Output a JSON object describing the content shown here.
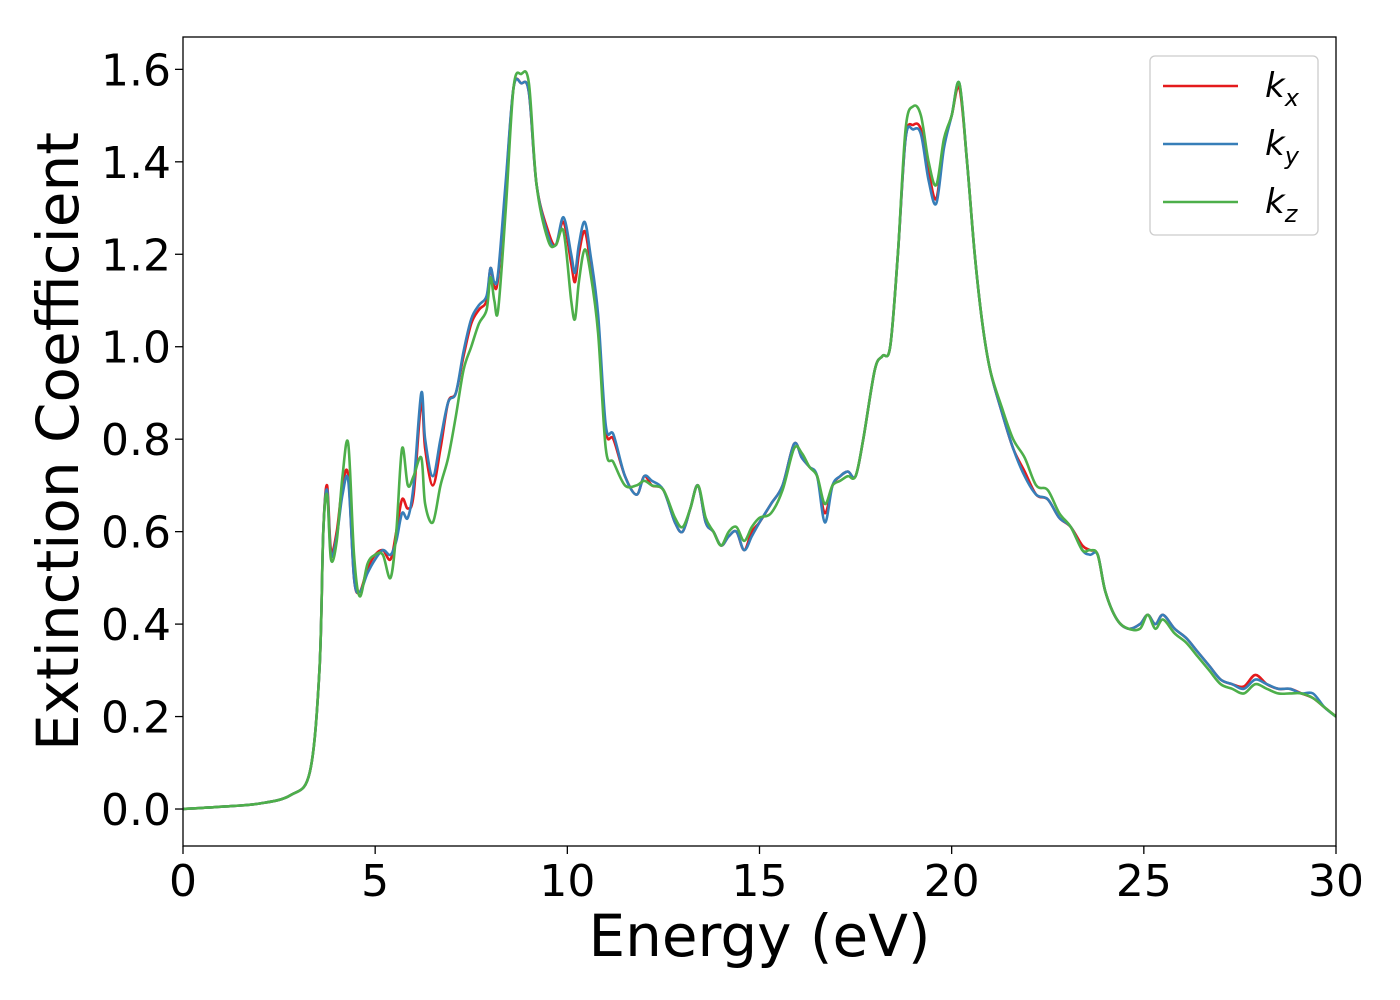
{
  "chart_data": {
    "type": "line",
    "title": "",
    "xlabel": "Energy (eV)",
    "ylabel": "Extinction Coefficient",
    "xlim": [
      0,
      30
    ],
    "ylim": [
      -0.08,
      1.67
    ],
    "xticks": [
      0,
      5,
      10,
      15,
      20,
      25,
      30
    ],
    "yticks": [
      0.0,
      0.2,
      0.4,
      0.6,
      0.8,
      1.0,
      1.2,
      1.4,
      1.6
    ],
    "ytick_labels": [
      "0.0",
      "0.2",
      "0.4",
      "0.6",
      "0.8",
      "1.0",
      "1.2",
      "1.4",
      "1.6"
    ],
    "grid": false,
    "legend_position": "top-right",
    "series": [
      {
        "name": "k_x",
        "label_main": "k",
        "label_sub": "x",
        "color": "#e41a1c",
        "x": [
          0,
          1,
          2,
          2.8,
          3.3,
          3.55,
          3.65,
          3.75,
          3.85,
          4.0,
          4.15,
          4.3,
          4.45,
          4.6,
          4.8,
          5.0,
          5.2,
          5.4,
          5.55,
          5.7,
          5.85,
          6.0,
          6.2,
          6.3,
          6.5,
          6.7,
          6.9,
          7.1,
          7.3,
          7.5,
          7.7,
          7.9,
          8.0,
          8.1,
          8.2,
          8.4,
          8.6,
          8.8,
          9.0,
          9.2,
          9.5,
          9.7,
          9.9,
          10.1,
          10.2,
          10.3,
          10.45,
          10.6,
          10.8,
          11.0,
          11.2,
          11.5,
          11.8,
          12.0,
          12.2,
          12.5,
          12.8,
          13.0,
          13.2,
          13.4,
          13.6,
          13.8,
          14.0,
          14.2,
          14.4,
          14.6,
          14.8,
          15.0,
          15.3,
          15.6,
          15.9,
          16.1,
          16.3,
          16.5,
          16.7,
          16.9,
          17.1,
          17.3,
          17.5,
          17.7,
          18.0,
          18.2,
          18.4,
          18.6,
          18.8,
          19.0,
          19.2,
          19.4,
          19.6,
          19.8,
          20.0,
          20.2,
          20.4,
          20.6,
          20.8,
          21.0,
          21.3,
          21.6,
          21.9,
          22.2,
          22.5,
          22.8,
          23.1,
          23.4,
          23.6,
          23.8,
          24.0,
          24.3,
          24.6,
          24.9,
          25.1,
          25.3,
          25.5,
          25.8,
          26.1,
          26.4,
          26.7,
          27.0,
          27.3,
          27.6,
          27.9,
          28.2,
          28.5,
          28.8,
          29.1,
          29.4,
          29.7,
          30.0
        ],
        "values": [
          0.0,
          0.005,
          0.012,
          0.03,
          0.08,
          0.3,
          0.6,
          0.7,
          0.56,
          0.6,
          0.7,
          0.72,
          0.5,
          0.47,
          0.52,
          0.55,
          0.56,
          0.54,
          0.6,
          0.67,
          0.65,
          0.68,
          0.88,
          0.78,
          0.7,
          0.78,
          0.88,
          0.9,
          0.98,
          1.05,
          1.08,
          1.1,
          1.17,
          1.13,
          1.15,
          1.35,
          1.56,
          1.57,
          1.55,
          1.35,
          1.25,
          1.22,
          1.27,
          1.18,
          1.14,
          1.2,
          1.25,
          1.18,
          1.05,
          0.82,
          0.8,
          0.72,
          0.68,
          0.72,
          0.7,
          0.69,
          0.62,
          0.6,
          0.65,
          0.7,
          0.62,
          0.6,
          0.57,
          0.59,
          0.6,
          0.56,
          0.6,
          0.62,
          0.66,
          0.7,
          0.79,
          0.76,
          0.74,
          0.72,
          0.64,
          0.7,
          0.72,
          0.73,
          0.72,
          0.8,
          0.95,
          0.98,
          1.0,
          1.2,
          1.45,
          1.48,
          1.47,
          1.38,
          1.32,
          1.44,
          1.5,
          1.56,
          1.4,
          1.2,
          1.05,
          0.95,
          0.86,
          0.78,
          0.73,
          0.68,
          0.67,
          0.63,
          0.61,
          0.57,
          0.56,
          0.55,
          0.47,
          0.41,
          0.39,
          0.4,
          0.42,
          0.4,
          0.42,
          0.39,
          0.37,
          0.34,
          0.31,
          0.28,
          0.27,
          0.265,
          0.29,
          0.27,
          0.26,
          0.26,
          0.25,
          0.24,
          0.22,
          0.2
        ]
      },
      {
        "name": "k_y",
        "label_main": "k",
        "label_sub": "y",
        "color": "#377eb8",
        "x": [
          0,
          1,
          2,
          2.8,
          3.3,
          3.55,
          3.65,
          3.75,
          3.85,
          4.0,
          4.15,
          4.3,
          4.45,
          4.6,
          4.8,
          5.0,
          5.2,
          5.4,
          5.55,
          5.7,
          5.85,
          6.0,
          6.2,
          6.3,
          6.5,
          6.7,
          6.9,
          7.1,
          7.3,
          7.5,
          7.7,
          7.9,
          8.0,
          8.1,
          8.2,
          8.4,
          8.6,
          8.8,
          9.0,
          9.2,
          9.5,
          9.7,
          9.9,
          10.1,
          10.2,
          10.3,
          10.45,
          10.6,
          10.8,
          11.0,
          11.2,
          11.5,
          11.8,
          12.0,
          12.2,
          12.5,
          12.8,
          13.0,
          13.2,
          13.4,
          13.6,
          13.8,
          14.0,
          14.2,
          14.4,
          14.6,
          14.8,
          15.0,
          15.3,
          15.6,
          15.9,
          16.1,
          16.3,
          16.5,
          16.7,
          16.9,
          17.1,
          17.3,
          17.5,
          17.7,
          18.0,
          18.2,
          18.4,
          18.6,
          18.8,
          19.0,
          19.2,
          19.4,
          19.6,
          19.8,
          20.0,
          20.2,
          20.4,
          20.6,
          20.8,
          21.0,
          21.3,
          21.6,
          21.9,
          22.2,
          22.5,
          22.8,
          23.1,
          23.4,
          23.6,
          23.8,
          24.0,
          24.3,
          24.6,
          24.9,
          25.1,
          25.3,
          25.5,
          25.8,
          26.1,
          26.4,
          26.7,
          27.0,
          27.3,
          27.6,
          27.9,
          28.2,
          28.5,
          28.8,
          29.1,
          29.4,
          29.7,
          30.0
        ],
        "values": [
          0.0,
          0.005,
          0.012,
          0.03,
          0.08,
          0.3,
          0.6,
          0.69,
          0.55,
          0.59,
          0.68,
          0.71,
          0.5,
          0.47,
          0.51,
          0.54,
          0.56,
          0.55,
          0.58,
          0.64,
          0.63,
          0.7,
          0.9,
          0.8,
          0.72,
          0.8,
          0.88,
          0.9,
          0.99,
          1.06,
          1.09,
          1.11,
          1.17,
          1.14,
          1.16,
          1.36,
          1.56,
          1.57,
          1.55,
          1.35,
          1.24,
          1.22,
          1.28,
          1.2,
          1.16,
          1.22,
          1.27,
          1.2,
          1.07,
          0.83,
          0.81,
          0.72,
          0.68,
          0.72,
          0.71,
          0.69,
          0.62,
          0.6,
          0.65,
          0.7,
          0.62,
          0.6,
          0.57,
          0.59,
          0.6,
          0.56,
          0.59,
          0.62,
          0.66,
          0.7,
          0.79,
          0.76,
          0.74,
          0.72,
          0.62,
          0.7,
          0.72,
          0.73,
          0.72,
          0.8,
          0.95,
          0.98,
          1.0,
          1.2,
          1.45,
          1.47,
          1.46,
          1.36,
          1.31,
          1.43,
          1.5,
          1.57,
          1.4,
          1.2,
          1.05,
          0.95,
          0.86,
          0.78,
          0.72,
          0.68,
          0.67,
          0.63,
          0.61,
          0.56,
          0.55,
          0.55,
          0.47,
          0.41,
          0.39,
          0.4,
          0.42,
          0.4,
          0.42,
          0.39,
          0.37,
          0.34,
          0.31,
          0.28,
          0.27,
          0.26,
          0.28,
          0.27,
          0.26,
          0.26,
          0.25,
          0.25,
          0.22,
          0.2
        ]
      },
      {
        "name": "k_z",
        "label_main": "k",
        "label_sub": "z",
        "color": "#4daf4a",
        "x": [
          0,
          1,
          2,
          2.8,
          3.3,
          3.55,
          3.65,
          3.75,
          3.85,
          4.0,
          4.15,
          4.3,
          4.45,
          4.6,
          4.8,
          5.0,
          5.2,
          5.4,
          5.55,
          5.7,
          5.85,
          6.0,
          6.2,
          6.3,
          6.5,
          6.7,
          6.9,
          7.1,
          7.3,
          7.5,
          7.7,
          7.9,
          8.0,
          8.1,
          8.2,
          8.4,
          8.6,
          8.8,
          9.0,
          9.2,
          9.5,
          9.7,
          9.9,
          10.1,
          10.2,
          10.3,
          10.45,
          10.6,
          10.8,
          11.0,
          11.2,
          11.5,
          11.8,
          12.0,
          12.2,
          12.5,
          12.8,
          13.0,
          13.2,
          13.4,
          13.6,
          13.8,
          14.0,
          14.2,
          14.4,
          14.6,
          14.8,
          15.0,
          15.3,
          15.6,
          15.9,
          16.1,
          16.3,
          16.5,
          16.7,
          16.9,
          17.1,
          17.3,
          17.5,
          17.7,
          18.0,
          18.2,
          18.4,
          18.6,
          18.8,
          19.0,
          19.2,
          19.4,
          19.6,
          19.8,
          20.0,
          20.2,
          20.4,
          20.6,
          20.8,
          21.0,
          21.3,
          21.6,
          21.9,
          22.2,
          22.5,
          22.8,
          23.1,
          23.4,
          23.6,
          23.8,
          24.0,
          24.3,
          24.6,
          24.9,
          25.1,
          25.3,
          25.5,
          25.8,
          26.1,
          26.4,
          26.7,
          27.0,
          27.3,
          27.6,
          27.9,
          28.2,
          28.5,
          28.8,
          29.1,
          29.4,
          29.7,
          30.0
        ],
        "values": [
          0.0,
          0.005,
          0.012,
          0.03,
          0.08,
          0.3,
          0.6,
          0.68,
          0.54,
          0.58,
          0.72,
          0.79,
          0.55,
          0.46,
          0.53,
          0.55,
          0.55,
          0.5,
          0.6,
          0.78,
          0.7,
          0.72,
          0.76,
          0.66,
          0.62,
          0.7,
          0.76,
          0.85,
          0.95,
          1.0,
          1.05,
          1.08,
          1.15,
          1.1,
          1.08,
          1.3,
          1.56,
          1.59,
          1.57,
          1.35,
          1.23,
          1.22,
          1.25,
          1.1,
          1.06,
          1.14,
          1.21,
          1.16,
          1.03,
          0.78,
          0.75,
          0.7,
          0.7,
          0.71,
          0.7,
          0.69,
          0.63,
          0.61,
          0.65,
          0.7,
          0.63,
          0.6,
          0.57,
          0.6,
          0.61,
          0.58,
          0.61,
          0.63,
          0.64,
          0.69,
          0.78,
          0.77,
          0.74,
          0.72,
          0.66,
          0.7,
          0.71,
          0.72,
          0.72,
          0.8,
          0.95,
          0.98,
          1.0,
          1.2,
          1.47,
          1.52,
          1.5,
          1.4,
          1.35,
          1.45,
          1.5,
          1.57,
          1.4,
          1.2,
          1.05,
          0.95,
          0.87,
          0.8,
          0.76,
          0.7,
          0.69,
          0.64,
          0.61,
          0.56,
          0.56,
          0.55,
          0.47,
          0.41,
          0.39,
          0.39,
          0.42,
          0.39,
          0.41,
          0.38,
          0.36,
          0.33,
          0.3,
          0.27,
          0.26,
          0.25,
          0.27,
          0.26,
          0.25,
          0.25,
          0.25,
          0.24,
          0.22,
          0.2
        ]
      }
    ]
  }
}
